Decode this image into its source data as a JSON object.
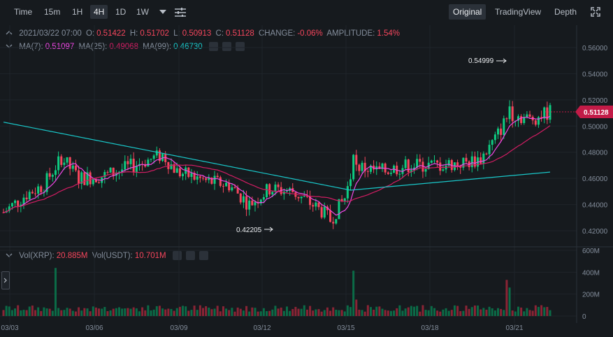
{
  "toolbar": {
    "timeframes": [
      "Time",
      "15m",
      "1H",
      "4H",
      "1D",
      "1W"
    ],
    "active_timeframe": "4H",
    "views": [
      "Original",
      "TradingView",
      "Depth"
    ],
    "active_view": "Original"
  },
  "ohlc": {
    "date": "2021/03/22 07:00",
    "o_label": "O:",
    "o": "0.51422",
    "h_label": "H:",
    "h": "0.51702",
    "l_label": "L:",
    "l": "0.50913",
    "c_label": "C:",
    "c": "0.51128",
    "change_label": "CHANGE:",
    "change": "-0.06%",
    "amplitude_label": "AMPLITUDE:",
    "amplitude": "1.54%"
  },
  "ma": {
    "ma7_label": "MA(7):",
    "ma7": "0.51097",
    "ma25_label": "MA(25):",
    "ma25": "0.49068",
    "ma99_label": "MA(99):",
    "ma99": "0.46730"
  },
  "vol": {
    "xrp_label": "Vol(XRP):",
    "xrp": "20.885M",
    "usdt_label": "Vol(USDT):",
    "usdt": "10.701M"
  },
  "annotations": {
    "high": "0.54999",
    "low": "0.42205"
  },
  "current_price": "0.51128",
  "price_axis": [
    "0.56000",
    "0.54000",
    "0.52000",
    "0.50000",
    "0.48000",
    "0.46000",
    "0.44000",
    "0.42000"
  ],
  "volume_axis": [
    "600M",
    "400M",
    "200M",
    "0"
  ],
  "date_axis": [
    "03/03",
    "03/06",
    "03/09",
    "03/12",
    "03/15",
    "03/18",
    "03/21"
  ],
  "colors": {
    "up": "#0ecb81",
    "down": "#f6465d",
    "ma7": "#f047e6",
    "ma25": "#d21d63",
    "ma99": "#19c7c9",
    "price_tag": "#c21b47"
  }
}
